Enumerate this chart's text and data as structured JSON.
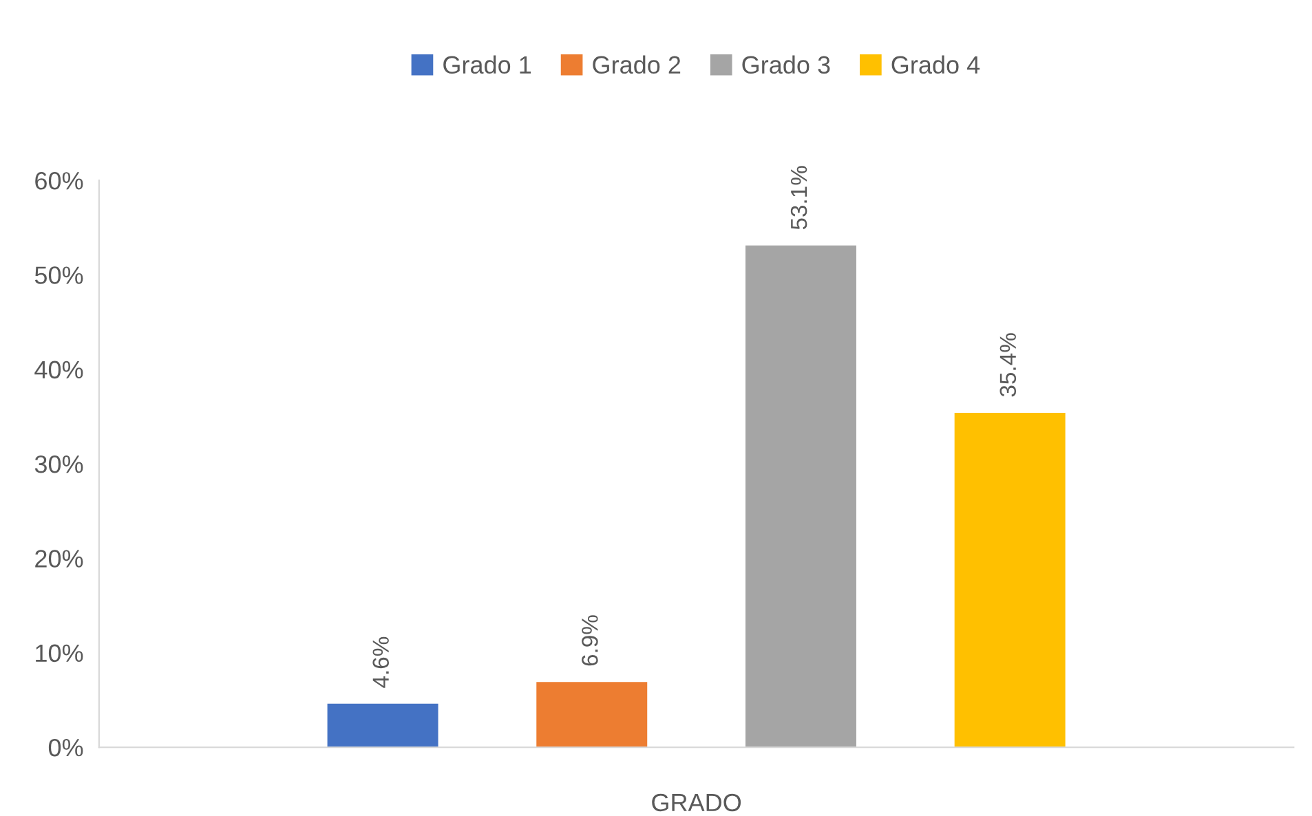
{
  "chart_data": {
    "type": "bar",
    "categories": [
      "GRADO"
    ],
    "series": [
      {
        "name": "Grado 1",
        "color": "#4472c4",
        "values": [
          4.6
        ],
        "value_labels": [
          "4.6%"
        ]
      },
      {
        "name": "Grado 2",
        "color": "#ed7d31",
        "values": [
          6.9
        ],
        "value_labels": [
          "6.9%"
        ]
      },
      {
        "name": "Grado 3",
        "color": "#a5a5a5",
        "values": [
          53.1
        ],
        "value_labels": [
          "53.1%"
        ]
      },
      {
        "name": "Grado 4",
        "color": "#ffc000",
        "values": [
          35.4
        ],
        "value_labels": [
          "35.4%"
        ]
      }
    ],
    "ylim": [
      0,
      60
    ],
    "yticks": [
      {
        "value": 0,
        "label": "0%"
      },
      {
        "value": 10,
        "label": "10%"
      },
      {
        "value": 20,
        "label": "20%"
      },
      {
        "value": 30,
        "label": "30%"
      },
      {
        "value": 40,
        "label": "40%"
      },
      {
        "value": 50,
        "label": "50%"
      },
      {
        "value": 60,
        "label": "60%"
      }
    ],
    "grid": false,
    "legend": "top"
  }
}
